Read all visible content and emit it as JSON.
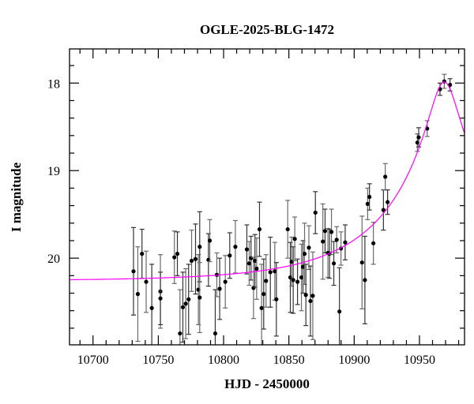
{
  "chart_data": {
    "type": "scatter",
    "title": "OGLE-2025-BLG-1472",
    "xlabel": "HJD - 2450000",
    "ylabel": "I magnitude",
    "xlim": [
      10682,
      10984.5
    ],
    "ylim": [
      20.99,
      17.61
    ],
    "y_inverted": true,
    "xticks": [
      10700,
      10750,
      10800,
      10850,
      10900,
      10950
    ],
    "xticklabels": [
      "10700",
      "10750",
      "10800",
      "10850",
      "10900",
      "10950"
    ],
    "yticks": [
      18,
      19,
      20
    ],
    "yticklabels": [
      "18",
      "19",
      "20"
    ],
    "x_minor_step": 10,
    "y_minor_step": 0.2,
    "grid": false,
    "colors": {
      "points": "#000000",
      "errorbars": "#333333",
      "model": "#ff00ff"
    },
    "series": [
      {
        "name": "data",
        "fields": [
          "hjd",
          "mag",
          "err"
        ],
        "points": [
          [
            10731,
            20.15,
            0.5
          ],
          [
            10734.3,
            20.41,
            0.54
          ],
          [
            10737.5,
            19.95,
            0.28
          ],
          [
            10740.7,
            20.27,
            0.35
          ],
          [
            10745,
            20.57,
            0.5
          ],
          [
            10751.6,
            20.38,
            0.42
          ],
          [
            10751.6,
            20.46,
            0.3
          ],
          [
            10762.3,
            19.99,
            0.3
          ],
          [
            10764.6,
            19.95,
            0.25
          ],
          [
            10766.6,
            20.86,
            0.5
          ],
          [
            10768.8,
            20.56,
            0.4
          ],
          [
            10771,
            20.52,
            0.4
          ],
          [
            10773.2,
            20.47,
            0.4
          ],
          [
            10775.5,
            20.03,
            0.35
          ],
          [
            10778.5,
            20.01,
            0.4
          ],
          [
            10780.7,
            20.36,
            0.4
          ],
          [
            10781.7,
            19.87,
            0.4
          ],
          [
            10781.7,
            20.45,
            0.4
          ],
          [
            10788.4,
            20.02,
            0.3
          ],
          [
            10789.4,
            19.8,
            0.24
          ],
          [
            10793.6,
            20.86,
            0.5
          ],
          [
            10794.8,
            20.19,
            0.25
          ],
          [
            10797,
            20.35,
            0.35
          ],
          [
            10801.3,
            20.27,
            0.3
          ],
          [
            10804.7,
            19.97,
            0.26
          ],
          [
            10809,
            19.87,
            0.3
          ],
          [
            10817.8,
            19.9,
            0.28
          ],
          [
            10819.6,
            20.06,
            0.25
          ],
          [
            10821,
            20.0,
            0.25
          ],
          [
            10822.9,
            20.34,
            0.35
          ],
          [
            10824,
            20.03,
            0.3
          ],
          [
            10825.3,
            20.12,
            0.35
          ],
          [
            10827.5,
            19.67,
            0.31
          ],
          [
            10829.1,
            20.57,
            0.5
          ],
          [
            10830.7,
            20.41,
            0.4
          ],
          [
            10832.5,
            20.26,
            0.3
          ],
          [
            10835.8,
            20.16,
            0.4
          ],
          [
            10839.2,
            20.15,
            0.33
          ],
          [
            10840.4,
            20.47,
            0.42
          ],
          [
            10849.1,
            19.67,
            0.33
          ],
          [
            10851.1,
            20.22,
            0.4
          ],
          [
            10852.1,
            20.04,
            0.28
          ],
          [
            10853.3,
            20.25,
            0.38
          ],
          [
            10854.5,
            19.78,
            0.25
          ],
          [
            10856.6,
            20.27,
            0.26
          ],
          [
            10859.6,
            20.22,
            0.38
          ],
          [
            10860.8,
            20.1,
            0.3
          ],
          [
            10862,
            19.95,
            0.35
          ],
          [
            10863,
            20.42,
            0.35
          ],
          [
            10865.3,
            19.88,
            0.25
          ],
          [
            10866.5,
            20.49,
            0.4
          ],
          [
            10868.3,
            20.43,
            0.5
          ],
          [
            10870.3,
            19.48,
            0.24
          ],
          [
            10876,
            19.81,
            0.43
          ],
          [
            10877.7,
            19.69,
            0.25
          ],
          [
            10879.9,
            19.94,
            0.28
          ],
          [
            10881.1,
            19.95,
            0.28
          ],
          [
            10882.6,
            19.7,
            0.26
          ],
          [
            10884.4,
            20.06,
            0.25
          ],
          [
            10886.6,
            19.79,
            0.15
          ],
          [
            10888.7,
            20.61,
            0.5
          ],
          [
            10889.9,
            19.89,
            0.19
          ],
          [
            10893.1,
            19.82,
            0.2
          ],
          [
            10906,
            20.05,
            0.53
          ],
          [
            10908.2,
            20.25,
            0.5
          ],
          [
            10910.3,
            19.38,
            0.18
          ],
          [
            10911.7,
            19.3,
            0.15
          ],
          [
            10914.7,
            19.83,
            0.24
          ],
          [
            10922.4,
            19.45,
            0.23
          ],
          [
            10923.8,
            19.07,
            0.15
          ],
          [
            10925.6,
            19.36,
            0.14
          ],
          [
            10948.4,
            18.68,
            0.1
          ],
          [
            10949.4,
            18.62,
            0.11
          ],
          [
            10955.9,
            18.52,
            0.09
          ],
          [
            10965.7,
            18.07,
            0.07
          ],
          [
            10969,
            17.98,
            0.08
          ],
          [
            10973.4,
            18.02,
            0.07
          ]
        ]
      },
      {
        "name": "model",
        "kind": "PSPL",
        "baseline_mag": 20.26,
        "t0": 10969,
        "u0": 0.124,
        "tE": 88
      }
    ]
  }
}
